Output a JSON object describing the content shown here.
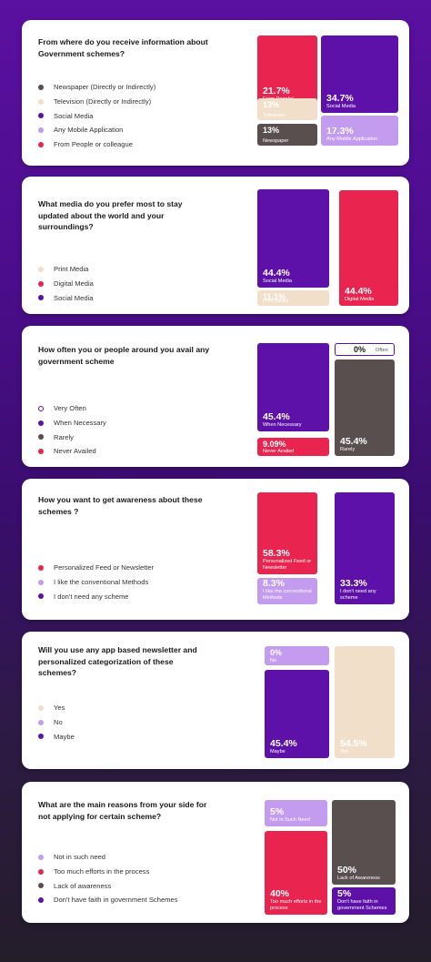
{
  "colors": {
    "purple": "#5d11a8",
    "pink": "#e8244f",
    "dark_gray": "#5a4f4f",
    "beige": "#f2dfca",
    "lavender": "#c39bef",
    "white": "#ffffff"
  },
  "cards": [
    {
      "question": "From where do you receive information about Government schemes?",
      "legend": [
        {
          "label": "Newspaper (Directly or Indirectly)",
          "color": "#5a4f4f"
        },
        {
          "label": "Television (Directly or Indirectly)",
          "color": "#f2dfca"
        },
        {
          "label": "Social Media",
          "color": "#5d11a8"
        },
        {
          "label": "Any Mobile Application",
          "color": "#c39bef"
        },
        {
          "label": "From People or colleague",
          "color": "#e8244f"
        }
      ],
      "tiles": [
        {
          "value": "21.7%",
          "label": "From People/ colleague",
          "color": "#e8244f"
        },
        {
          "value": "13%",
          "label": "Television",
          "color": "#f2dfca"
        },
        {
          "value": "13%",
          "label": "Newspaper",
          "color": "#5a4f4f"
        },
        {
          "value": "34.7%",
          "label": "Social Media",
          "color": "#5d11a8"
        },
        {
          "value": "17.3%",
          "label": "Any Mobile Application",
          "color": "#c39bef"
        }
      ]
    },
    {
      "question": "What media do you prefer most to stay updated about the world and your surroundings?",
      "legend": [
        {
          "label": "Print Media",
          "color": "#f2dfca"
        },
        {
          "label": "Digital Media",
          "color": "#e8244f"
        },
        {
          "label": "Social Media",
          "color": "#5d11a8"
        }
      ],
      "tiles": [
        {
          "value": "44.4%",
          "label": "Social Media",
          "color": "#5d11a8"
        },
        {
          "value": "11.1%",
          "label": "Print Media",
          "color": "#f2dfca"
        },
        {
          "value": "44.4%",
          "label": "Digital Media",
          "color": "#e8244f"
        }
      ]
    },
    {
      "question": "How often you or people around you avail any government scheme",
      "legend": [
        {
          "label": "Very Often",
          "color": "outline"
        },
        {
          "label": "When Necessary",
          "color": "#5d11a8"
        },
        {
          "label": "Rarely",
          "color": "#5a4f4f"
        },
        {
          "label": "Never Availed",
          "color": "#e8244f"
        }
      ],
      "tiles": [
        {
          "value": "45.4%",
          "label": "When Necessary",
          "color": "#5d11a8"
        },
        {
          "value": "9.09%",
          "label": "Never Availed",
          "color": "#e8244f"
        },
        {
          "value": "0%",
          "label": "Often",
          "color": "outline"
        },
        {
          "value": "45.4%",
          "label": "Rarely",
          "color": "#5a4f4f"
        }
      ]
    },
    {
      "question": "How you want to get awareness about these schemes ?",
      "legend": [
        {
          "label": "Personalized Feed or Newsletter",
          "color": "#e8244f"
        },
        {
          "label": "I like the conventional Methods",
          "color": "#c39bef"
        },
        {
          "label": "I don't need any scheme",
          "color": "#5d11a8"
        }
      ],
      "tiles": [
        {
          "value": "58.3%",
          "label": "Personalized Feed or Newsletter",
          "color": "#e8244f"
        },
        {
          "value": "8.3%",
          "label": "I like the conventional Methods",
          "color": "#c39bef"
        },
        {
          "value": "33.3%",
          "label": "I don't need any scheme",
          "color": "#5d11a8"
        }
      ]
    },
    {
      "question": "Will you use any app based newsletter and personalized categorization of these schemes?",
      "legend": [
        {
          "label": "Yes",
          "color": "#f2dfca"
        },
        {
          "label": "No",
          "color": "#c39bef"
        },
        {
          "label": "Maybe",
          "color": "#5d11a8"
        }
      ],
      "tiles": [
        {
          "value": "0%",
          "label": "No",
          "color": "#c39bef"
        },
        {
          "value": "45.4%",
          "label": "Maybe",
          "color": "#5d11a8"
        },
        {
          "value": "54.5%",
          "label": "Yes",
          "color": "#f2dfca"
        }
      ]
    },
    {
      "question": "What are the main reasons from your side for not applying for certain scheme?",
      "legend": [
        {
          "label": "Not in such need",
          "color": "#c39bef"
        },
        {
          "label": "Too much efforts in the process",
          "color": "#e8244f"
        },
        {
          "label": "Lack of awareness",
          "color": "#5a4f4f"
        },
        {
          "label": "Don't have faith in government Schemes",
          "color": "#5d11a8"
        }
      ],
      "tiles": [
        {
          "value": "5%",
          "label": "Not in Such Need",
          "color": "#c39bef"
        },
        {
          "value": "40%",
          "label": "Too much efforts in the process",
          "color": "#e8244f"
        },
        {
          "value": "50%",
          "label": "Lack of Awareness",
          "color": "#5a4f4f"
        },
        {
          "value": "5%",
          "label": "Don't have faith in government Schemes",
          "color": "#5d11a8"
        }
      ]
    }
  ],
  "chart_data": [
    {
      "type": "treemap",
      "title": "From where do you receive information about Government schemes?",
      "categories": [
        "From People/ colleague",
        "Television",
        "Newspaper",
        "Social Media",
        "Any Mobile Application"
      ],
      "values": [
        21.7,
        13,
        13,
        34.7,
        17.3
      ]
    },
    {
      "type": "treemap",
      "title": "What media do you prefer most to stay updated about the world and your surroundings?",
      "categories": [
        "Social Media",
        "Print Media",
        "Digital Media"
      ],
      "values": [
        44.4,
        11.1,
        44.4
      ]
    },
    {
      "type": "treemap",
      "title": "How often you or people around you avail any government scheme",
      "categories": [
        "When Necessary",
        "Never Availed",
        "Often",
        "Rarely"
      ],
      "values": [
        45.4,
        9.09,
        0,
        45.4
      ]
    },
    {
      "type": "treemap",
      "title": "How you want to get awareness about these schemes ?",
      "categories": [
        "Personalized Feed or Newsletter",
        "I like the conventional Methods",
        "I don't need any scheme"
      ],
      "values": [
        58.3,
        8.3,
        33.3
      ]
    },
    {
      "type": "treemap",
      "title": "Will you use any app based newsletter and personalized categorization of these schemes?",
      "categories": [
        "No",
        "Maybe",
        "Yes"
      ],
      "values": [
        0,
        45.4,
        54.5
      ]
    },
    {
      "type": "treemap",
      "title": "What are the main reasons from your side for not applying for certain scheme?",
      "categories": [
        "Not in Such Need",
        "Too much efforts in the process",
        "Lack of Awareness",
        "Don't have faith in government Schemes"
      ],
      "values": [
        5,
        40,
        50,
        5
      ]
    }
  ]
}
